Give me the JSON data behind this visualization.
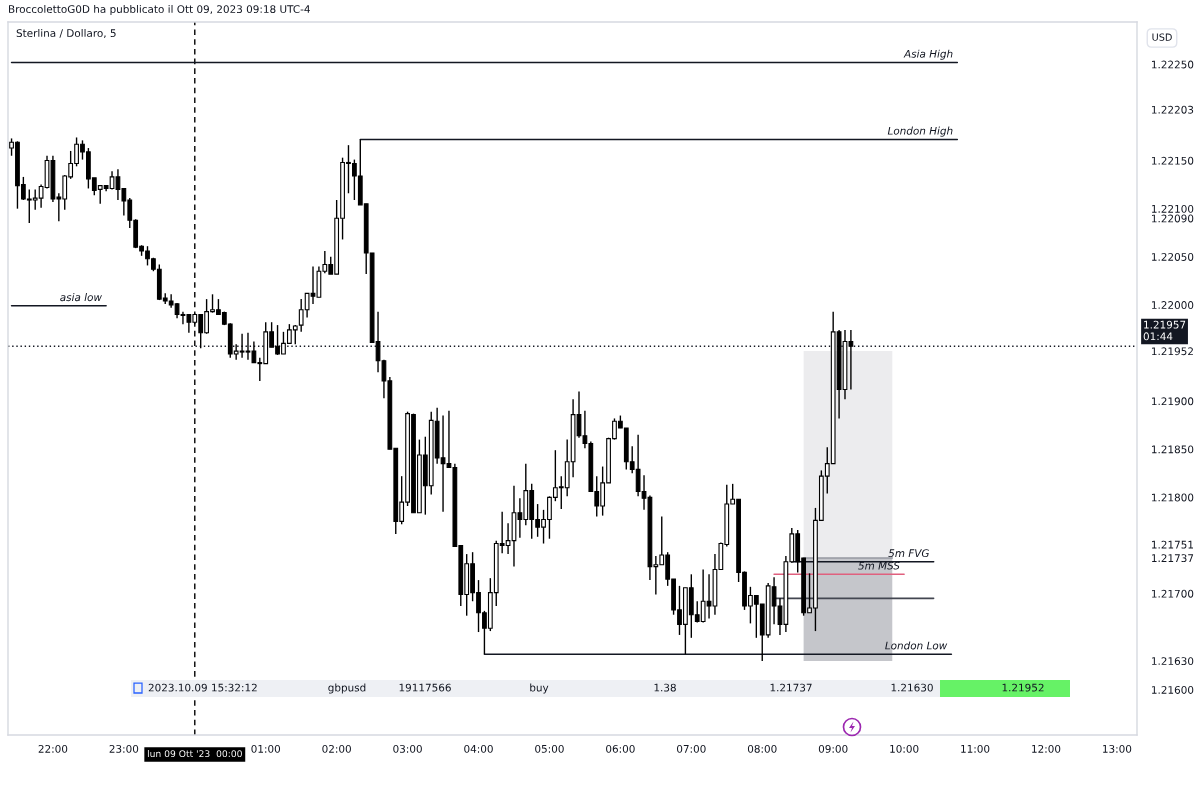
{
  "chart_data": {
    "type": "candlestick",
    "title": "Sterlina / Dollaro, 5",
    "xlim": [
      "2023-10-08T21:22",
      "2023-10-09T13:17"
    ],
    "ylim": [
      1.21553,
      1.22294
    ],
    "xticks": [
      {
        "value": "2023-10-08T22:00",
        "label": "22:00"
      },
      {
        "value": "2023-10-08T23:00",
        "label": "23:00"
      },
      {
        "value": "2023-10-09T01:00",
        "label": "01:00"
      },
      {
        "value": "2023-10-09T02:00",
        "label": "02:00"
      },
      {
        "value": "2023-10-09T03:00",
        "label": "03:00"
      },
      {
        "value": "2023-10-09T04:00",
        "label": "04:00"
      },
      {
        "value": "2023-10-09T05:00",
        "label": "05:00"
      },
      {
        "value": "2023-10-09T06:00",
        "label": "06:00"
      },
      {
        "value": "2023-10-09T07:00",
        "label": "07:00"
      },
      {
        "value": "2023-10-09T08:00",
        "label": "08:00"
      },
      {
        "value": "2023-10-09T09:00",
        "label": "09:00"
      },
      {
        "value": "2023-10-09T10:00",
        "label": "10:00"
      },
      {
        "value": "2023-10-09T11:00",
        "label": "11:00"
      },
      {
        "value": "2023-10-09T12:00",
        "label": "12:00"
      },
      {
        "value": "2023-10-09T13:00",
        "label": "13:00"
      }
    ],
    "yticks": [
      {
        "value": 1.216,
        "label": "1.21600"
      },
      {
        "value": 1.2163,
        "label": "1.21630"
      },
      {
        "value": 1.217,
        "label": "1.21700"
      },
      {
        "value": 1.21737,
        "label": "1.21737"
      },
      {
        "value": 1.21751,
        "label": "1.21751"
      },
      {
        "value": 1.218,
        "label": "1.21800"
      },
      {
        "value": 1.2185,
        "label": "1.21850"
      },
      {
        "value": 1.219,
        "label": "1.21900"
      },
      {
        "value": 1.21952,
        "label": "1.21952"
      },
      {
        "value": 1.22,
        "label": "1.22000"
      },
      {
        "value": 1.2205,
        "label": "1.22050"
      },
      {
        "value": 1.2209,
        "label": "1.22090"
      },
      {
        "value": 1.221,
        "label": "1.22100"
      },
      {
        "value": 1.2215,
        "label": "1.22150"
      },
      {
        "value": 1.22203,
        "label": "1.22203"
      },
      {
        "value": 1.2225,
        "label": "1.22250"
      }
    ],
    "series": [
      {
        "type": "line",
        "x": [
          "2023-10-09T08:35",
          "2023-10-09T09:50"
        ],
        "values": [
          1.21737,
          1.21737
        ],
        "lower": [
          1.2163,
          1.2163
        ],
        "upper": [
          1.21952,
          1.21952
        ],
        "color": "#9598a1"
      },
      {
        "type": "line",
        "name": "Asia High",
        "x": [
          "2023-10-08T21:25",
          "2023-10-09T10:45"
        ],
        "values": [
          1.22252,
          1.22252
        ],
        "color": "#131722"
      },
      {
        "type": "line",
        "name": "London High",
        "x": [
          "2023-10-09T02:20",
          "2023-10-09T10:45"
        ],
        "values": [
          1.22172,
          1.22172
        ],
        "color": "#131722"
      },
      {
        "type": "line",
        "name": "asia low",
        "x": [
          "2023-10-08T21:25",
          "2023-10-08T22:45"
        ],
        "values": [
          1.21999,
          1.21999
        ],
        "color": "#131722"
      },
      {
        "type": "line",
        "name": "London Low",
        "x": [
          "2023-10-09T04:05",
          "2023-10-09T10:40"
        ],
        "values": [
          1.21637,
          1.21637
        ],
        "color": "#131722"
      },
      {
        "type": "line",
        "name": "5m FVG",
        "x": [
          "2023-10-09T08:25",
          "2023-10-09T10:25"
        ],
        "values": [
          1.21733,
          1.21733
        ],
        "color": "#131722"
      },
      {
        "type": "line",
        "name": "5m MSS",
        "x": [
          "2023-10-09T08:10",
          "2023-10-09T10:00"
        ],
        "values": [
          1.2172,
          1.2172
        ],
        "color": "#e0607e"
      },
      {
        "type": "line",
        "x": [
          "2023-10-09T08:10",
          "2023-10-09T10:25"
        ],
        "values": [
          1.21695,
          1.21695
        ],
        "color": "#434651"
      },
      {
        "color": "#000000",
        "x": [
          "2023-10-08T21:25",
          "2023-10-08T21:30",
          "2023-10-08T21:35",
          "2023-10-08T21:40",
          "2023-10-08T21:45",
          "2023-10-08T21:50",
          "2023-10-08T21:55",
          "2023-10-08T22:00",
          "2023-10-08T22:05",
          "2023-10-08T22:10",
          "2023-10-08T22:15",
          "2023-10-08T22:20",
          "2023-10-08T22:25",
          "2023-10-08T22:30",
          "2023-10-08T22:35",
          "2023-10-08T22:40",
          "2023-10-08T22:45",
          "2023-10-08T22:50",
          "2023-10-08T22:55",
          "2023-10-08T23:00",
          "2023-10-08T23:05",
          "2023-10-08T23:10",
          "2023-10-08T23:15",
          "2023-10-08T23:20",
          "2023-10-08T23:25",
          "2023-10-08T23:30",
          "2023-10-08T23:35",
          "2023-10-08T23:40",
          "2023-10-08T23:45",
          "2023-10-08T23:50",
          "2023-10-08T23:55",
          "2023-10-09T00:00",
          "2023-10-09T00:05",
          "2023-10-09T00:10",
          "2023-10-09T00:15",
          "2023-10-09T00:20",
          "2023-10-09T00:25",
          "2023-10-09T00:30",
          "2023-10-09T00:35",
          "2023-10-09T00:40",
          "2023-10-09T00:45",
          "2023-10-09T00:50",
          "2023-10-09T00:55",
          "2023-10-09T01:00",
          "2023-10-09T01:05",
          "2023-10-09T01:10",
          "2023-10-09T01:15",
          "2023-10-09T01:20",
          "2023-10-09T01:25",
          "2023-10-09T01:30",
          "2023-10-09T01:35",
          "2023-10-09T01:40",
          "2023-10-09T01:45",
          "2023-10-09T01:50",
          "2023-10-09T01:55",
          "2023-10-09T02:00",
          "2023-10-09T02:05",
          "2023-10-09T02:10",
          "2023-10-09T02:15",
          "2023-10-09T02:20",
          "2023-10-09T02:25",
          "2023-10-09T02:30",
          "2023-10-09T02:35",
          "2023-10-09T02:40",
          "2023-10-09T02:45",
          "2023-10-09T02:50",
          "2023-10-09T02:55",
          "2023-10-09T03:00",
          "2023-10-09T03:05",
          "2023-10-09T03:10",
          "2023-10-09T03:15",
          "2023-10-09T03:20",
          "2023-10-09T03:25",
          "2023-10-09T03:30",
          "2023-10-09T03:35",
          "2023-10-09T03:40",
          "2023-10-09T03:45",
          "2023-10-09T03:50",
          "2023-10-09T03:55",
          "2023-10-09T04:00",
          "2023-10-09T04:05",
          "2023-10-09T04:10",
          "2023-10-09T04:15",
          "2023-10-09T04:20",
          "2023-10-09T04:25",
          "2023-10-09T04:30",
          "2023-10-09T04:35",
          "2023-10-09T04:40",
          "2023-10-09T04:45",
          "2023-10-09T04:50",
          "2023-10-09T04:55",
          "2023-10-09T05:00",
          "2023-10-09T05:05",
          "2023-10-09T05:10",
          "2023-10-09T05:15",
          "2023-10-09T05:20",
          "2023-10-09T05:25",
          "2023-10-09T05:30",
          "2023-10-09T05:35",
          "2023-10-09T05:40",
          "2023-10-09T05:45",
          "2023-10-09T05:50",
          "2023-10-09T05:55",
          "2023-10-09T06:00",
          "2023-10-09T06:05",
          "2023-10-09T06:10",
          "2023-10-09T06:15",
          "2023-10-09T06:20",
          "2023-10-09T06:25",
          "2023-10-09T06:30",
          "2023-10-09T06:35",
          "2023-10-09T06:40",
          "2023-10-09T06:45",
          "2023-10-09T06:50",
          "2023-10-09T06:55",
          "2023-10-09T07:00",
          "2023-10-09T07:05",
          "2023-10-09T07:10",
          "2023-10-09T07:15",
          "2023-10-09T07:20",
          "2023-10-09T07:25",
          "2023-10-09T07:30",
          "2023-10-09T07:35",
          "2023-10-09T07:40",
          "2023-10-09T07:45",
          "2023-10-09T07:50",
          "2023-10-09T07:55",
          "2023-10-09T08:00",
          "2023-10-09T08:05",
          "2023-10-09T08:10",
          "2023-10-09T08:15",
          "2023-10-09T08:20",
          "2023-10-09T08:25",
          "2023-10-09T08:30",
          "2023-10-09T08:35",
          "2023-10-09T08:40",
          "2023-10-09T08:45",
          "2023-10-09T08:50",
          "2023-10-09T08:55",
          "2023-10-09T09:00",
          "2023-10-09T09:05",
          "2023-10-09T09:10",
          "2023-10-09T09:15"
        ],
        "ohlc": [
          [
            1.22163,
            1.22173,
            1.22155,
            1.22169
          ],
          [
            1.22169,
            1.2217,
            1.221,
            1.22124
          ],
          [
            1.22125,
            1.22133,
            1.22109,
            1.2211
          ],
          [
            1.2211,
            1.2212,
            1.22085,
            1.22109
          ],
          [
            1.22109,
            1.2212,
            1.22099,
            1.22111
          ],
          [
            1.22111,
            1.22125,
            1.22101,
            1.22123
          ],
          [
            1.22122,
            1.22155,
            1.22121,
            1.2215
          ],
          [
            1.2215,
            1.22155,
            1.22107,
            1.2211
          ],
          [
            1.22112,
            1.22116,
            1.22087,
            1.2211
          ],
          [
            1.2211,
            1.22135,
            1.22099,
            1.22134
          ],
          [
            1.22133,
            1.2216,
            1.22131,
            1.22147
          ],
          [
            1.22147,
            1.22174,
            1.22144,
            1.22167
          ],
          [
            1.22167,
            1.22171,
            1.22151,
            1.22159
          ],
          [
            1.22159,
            1.22163,
            1.22121,
            1.22131
          ],
          [
            1.22132,
            1.22132,
            1.22114,
            1.22119
          ],
          [
            1.2212,
            1.22124,
            1.22105,
            1.22124
          ],
          [
            1.22124,
            1.22124,
            1.22118,
            1.22121
          ],
          [
            1.22121,
            1.22139,
            1.2212,
            1.22133
          ],
          [
            1.22133,
            1.22141,
            1.22109,
            1.2212
          ],
          [
            1.22121,
            1.22121,
            1.22093,
            1.22108
          ],
          [
            1.22109,
            1.22111,
            1.2208,
            1.22088
          ],
          [
            1.22088,
            1.22089,
            1.22059,
            1.2206
          ],
          [
            1.22061,
            1.22062,
            1.22051,
            1.22056
          ],
          [
            1.22056,
            1.22061,
            1.22041,
            1.22048
          ],
          [
            1.22048,
            1.22049,
            1.22035,
            1.22037
          ],
          [
            1.22037,
            1.22042,
            1.22005,
            1.22006
          ],
          [
            1.22007,
            1.22012,
            1.22001,
            1.22004
          ],
          [
            1.22004,
            1.22011,
            1.21997,
            1.22
          ],
          [
            1.22001,
            1.22002,
            1.21986,
            1.2199
          ],
          [
            1.2199,
            1.21993,
            1.2198,
            1.21989
          ],
          [
            1.2199,
            1.2199,
            1.21971,
            1.21982
          ],
          [
            1.21982,
            1.21991,
            1.2198,
            1.2199
          ],
          [
            1.2199,
            1.2199,
            1.21955,
            1.21971
          ],
          [
            1.21971,
            1.22006,
            1.2197,
            1.21993
          ],
          [
            1.21993,
            1.22011,
            1.21992,
            1.21995
          ],
          [
            1.21995,
            1.22006,
            1.2199,
            1.2199
          ],
          [
            1.21992,
            1.21993,
            1.21979,
            1.2198
          ],
          [
            1.2198,
            1.21981,
            1.21945,
            1.21949
          ],
          [
            1.21949,
            1.21959,
            1.21943,
            1.21952
          ],
          [
            1.21952,
            1.2197,
            1.21945,
            1.21951
          ],
          [
            1.21952,
            1.21971,
            1.21943,
            1.21951
          ],
          [
            1.21952,
            1.21962,
            1.2194,
            1.2194
          ],
          [
            1.2194,
            1.21945,
            1.21921,
            1.21939
          ],
          [
            1.21939,
            1.21982,
            1.21939,
            1.21972
          ],
          [
            1.21972,
            1.21982,
            1.21956,
            1.21956
          ],
          [
            1.21957,
            1.21979,
            1.21948,
            1.21949
          ],
          [
            1.21949,
            1.21972,
            1.21949,
            1.2196
          ],
          [
            1.2196,
            1.2198,
            1.2196,
            1.21974
          ],
          [
            1.21974,
            1.21979,
            1.21959,
            1.21978
          ],
          [
            1.21979,
            1.22006,
            1.21972,
            1.21995
          ],
          [
            1.21995,
            1.22012,
            1.21987,
            1.22012
          ],
          [
            1.22012,
            1.2204,
            1.22001,
            1.22009
          ],
          [
            1.22008,
            1.2204,
            1.22008,
            1.22035
          ],
          [
            1.22035,
            1.22056,
            1.22033,
            1.22042
          ],
          [
            1.22042,
            1.2205,
            1.22032,
            1.22032
          ],
          [
            1.22032,
            1.22109,
            1.22032,
            1.2209
          ],
          [
            1.2209,
            1.22153,
            1.22068,
            1.22148
          ],
          [
            1.22148,
            1.22166,
            1.22116,
            1.22147
          ],
          [
            1.22147,
            1.22151,
            1.22109,
            1.22134
          ],
          [
            1.22134,
            1.22172,
            1.22104,
            1.22104
          ],
          [
            1.22105,
            1.22105,
            1.22032,
            1.22054
          ],
          [
            1.22054,
            1.22054,
            1.21961,
            1.21961
          ],
          [
            1.21962,
            1.21993,
            1.2193,
            1.21942
          ],
          [
            1.21942,
            1.21943,
            1.21903,
            1.21921
          ],
          [
            1.21921,
            1.21925,
            1.2185,
            1.2185
          ],
          [
            1.21851,
            1.21851,
            1.21762,
            1.21775
          ],
          [
            1.21775,
            1.21822,
            1.21772,
            1.21795
          ],
          [
            1.21795,
            1.21889,
            1.21791,
            1.21887
          ],
          [
            1.21886,
            1.21887,
            1.21784,
            1.21784
          ],
          [
            1.21784,
            1.2186,
            1.21784,
            1.21844
          ],
          [
            1.21844,
            1.21863,
            1.21782,
            1.21812
          ],
          [
            1.21812,
            1.21889,
            1.21803,
            1.2188
          ],
          [
            1.21879,
            1.21893,
            1.21835,
            1.21841
          ],
          [
            1.21841,
            1.21885,
            1.21785,
            1.21835
          ],
          [
            1.21835,
            1.2189,
            1.21831,
            1.21831
          ],
          [
            1.21831,
            1.21835,
            1.21749,
            1.21749
          ],
          [
            1.2175,
            1.2175,
            1.21687,
            1.21699
          ],
          [
            1.21699,
            1.21741,
            1.21677,
            1.21731
          ],
          [
            1.21731,
            1.21743,
            1.21692,
            1.21701
          ],
          [
            1.21701,
            1.21714,
            1.2166,
            1.2168
          ],
          [
            1.2168,
            1.21682,
            1.21637,
            1.21664
          ],
          [
            1.21664,
            1.21716,
            1.21661,
            1.21701
          ],
          [
            1.21701,
            1.21755,
            1.21687,
            1.21752
          ],
          [
            1.21752,
            1.21785,
            1.21742,
            1.2175
          ],
          [
            1.2175,
            1.21773,
            1.21741,
            1.21755
          ],
          [
            1.21755,
            1.21812,
            1.21728,
            1.21784
          ],
          [
            1.21784,
            1.21799,
            1.21758,
            1.21777
          ],
          [
            1.21777,
            1.21835,
            1.21771,
            1.21807
          ],
          [
            1.21807,
            1.21814,
            1.21757,
            1.21777
          ],
          [
            1.21777,
            1.21793,
            1.21759,
            1.21769
          ],
          [
            1.21769,
            1.21787,
            1.21752,
            1.21777
          ],
          [
            1.21777,
            1.21801,
            1.21757,
            1.218
          ],
          [
            1.218,
            1.21849,
            1.21796,
            1.2181
          ],
          [
            1.2181,
            1.21822,
            1.21788,
            1.21811
          ],
          [
            1.2181,
            1.2186,
            1.21801,
            1.21837
          ],
          [
            1.21837,
            1.21902,
            1.21821,
            1.21886
          ],
          [
            1.21886,
            1.2191,
            1.21862,
            1.21864
          ],
          [
            1.21864,
            1.2189,
            1.21851,
            1.21856
          ],
          [
            1.21856,
            1.21858,
            1.21806,
            1.21806
          ],
          [
            1.21806,
            1.21822,
            1.2178,
            1.21791
          ],
          [
            1.21791,
            1.21832,
            1.21781,
            1.21815
          ],
          [
            1.21815,
            1.21862,
            1.21815,
            1.21861
          ],
          [
            1.21861,
            1.21882,
            1.2186,
            1.21879
          ],
          [
            1.21879,
            1.21885,
            1.21872,
            1.21872
          ],
          [
            1.21872,
            1.21872,
            1.21829,
            1.21837
          ],
          [
            1.21837,
            1.21853,
            1.21825,
            1.21829
          ],
          [
            1.21829,
            1.21865,
            1.21801,
            1.21806
          ],
          [
            1.21806,
            1.21823,
            1.21787,
            1.21799
          ],
          [
            1.218,
            1.21802,
            1.21714,
            1.21728
          ],
          [
            1.21728,
            1.21739,
            1.21699,
            1.2173
          ],
          [
            1.2173,
            1.2178,
            1.2173,
            1.2174
          ],
          [
            1.2174,
            1.21743,
            1.21708,
            1.21715
          ],
          [
            1.21715,
            1.21715,
            1.21678,
            1.21683
          ],
          [
            1.21683,
            1.21708,
            1.21657,
            1.21668
          ],
          [
            1.21668,
            1.21706,
            1.21637,
            1.21706
          ],
          [
            1.21706,
            1.2172,
            1.21654,
            1.21678
          ],
          [
            1.21678,
            1.21692,
            1.2167,
            1.21671
          ],
          [
            1.21671,
            1.21725,
            1.2167,
            1.21692
          ],
          [
            1.21692,
            1.2172,
            1.21674,
            1.21687
          ],
          [
            1.21687,
            1.21741,
            1.21678,
            1.21725
          ],
          [
            1.21725,
            1.21753,
            1.21725,
            1.21752
          ],
          [
            1.21751,
            1.21813,
            1.21749,
            1.21793
          ],
          [
            1.21793,
            1.21814,
            1.21793,
            1.21798
          ],
          [
            1.21798,
            1.21798,
            1.21712,
            1.21722
          ],
          [
            1.21722,
            1.21723,
            1.21683,
            1.21687
          ],
          [
            1.21687,
            1.21707,
            1.21669,
            1.21698
          ],
          [
            1.21698,
            1.21698,
            1.21654,
            1.21689
          ],
          [
            1.21689,
            1.21689,
            1.2163,
            1.21657
          ],
          [
            1.21657,
            1.21711,
            1.21654,
            1.21708
          ],
          [
            1.21707,
            1.21717,
            1.21668,
            1.21687
          ],
          [
            1.21687,
            1.21695,
            1.21657,
            1.21668
          ],
          [
            1.21668,
            1.21739,
            1.2166,
            1.21733
          ],
          [
            1.21733,
            1.21768,
            1.21732,
            1.21762
          ],
          [
            1.21762,
            1.21766,
            1.21722,
            1.21733
          ],
          [
            1.21737,
            1.21737,
            1.21677,
            1.2168
          ],
          [
            1.2168,
            1.21721,
            1.2168,
            1.21685
          ],
          [
            1.21685,
            1.21789,
            1.21661,
            1.21776
          ],
          [
            1.21776,
            1.21828,
            1.21776,
            1.21822
          ],
          [
            1.21822,
            1.21852,
            1.21804,
            1.21835
          ],
          [
            1.21835,
            1.21993,
            1.21835,
            1.21972
          ],
          [
            1.21972,
            1.21974,
            1.21882,
            1.21912
          ],
          [
            1.21912,
            1.21974,
            1.21902,
            1.21962
          ],
          [
            1.21962,
            1.21974,
            1.21912,
            1.21957
          ]
        ]
      }
    ],
    "ref_lines": [
      {
        "axis": "x",
        "value": "2023-10-09T00:00",
        "label": "lun 09 Ott '23  00:00",
        "color": "#000000",
        "line_style": "dashed"
      },
      {
        "axis": "y",
        "value": 1.21957,
        "label": "1.21957\n01:44",
        "color": "#131722",
        "line_style": "dotted"
      }
    ],
    "annotations": [
      "BroccolettoG0D ha pubblicato il Ott 09, 2023 09:18 UTC-4",
      "USD",
      "2023.10.09 15:32:12",
      "gbpusd",
      "19117566",
      "buy",
      "1.38",
      "1.21737",
      "1.21630",
      "1.21952"
    ]
  }
}
